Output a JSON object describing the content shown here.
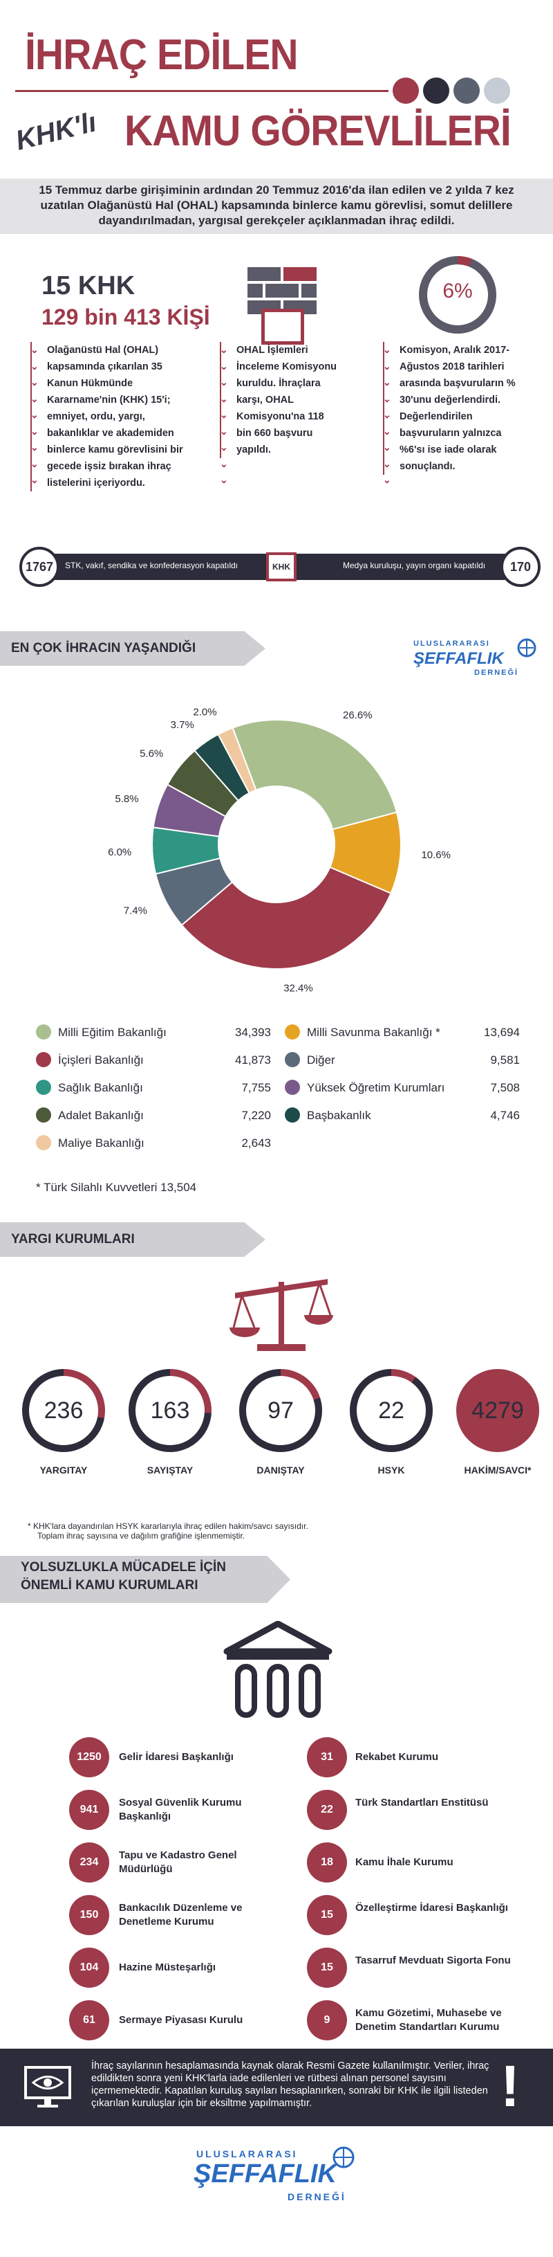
{
  "header": {
    "title_line1": "İHRAÇ EDİLEN",
    "khkli": "KHK'lı",
    "title_line2": "KAMU GÖREVLİLERİ",
    "dot_colors": [
      "#9e3a4a",
      "#2c2c3a",
      "#5a6270",
      "#c5ccd6"
    ]
  },
  "intro": "15 Temmuz darbe girişiminin ardından 20 Temmuz 2016'da ilan edilen ve 2 yılda 7 kez uzatılan Olağanüstü Hal (OHAL) kapsamında binlerce kamu görevlisi, somut delillere dayandırılmadan, yargısal gerekçeler açıklanmadan ihraç edildi.",
  "stats": {
    "khk_count": "15 KHK",
    "people": "129 bin 413 KİŞİ",
    "col1": "Olağanüstü Hal (OHAL) kapsamında çıkarılan 35 Kanun Hükmünde Kararname'nin (KHK) 15'i; emniyet, ordu, yargı, bakanlıklar ve akademiden binlerce kamu görevlisini bir gecede işsiz bırakan ihraç listelerini içeriyordu.",
    "col2": "OHAL İşlemleri İnceleme Komisyonu kuruldu. İhraçlara karşı, OHAL Komisyonu'na 118 bin 660 başvuru yapıldı.",
    "percent": "6%",
    "col3": "Komisyon, Aralık 2017-Ağustos 2018 tarihleri arasında başvuruların % 30'unu değerlendirdi. Değerlendirilen başvuruların yalnızca %6'sı ise iade olarak sonuçlandı."
  },
  "timeline": {
    "left_num": "1767",
    "left_text": "STK, vakıf, sendika ve konfederasyon kapatıldı",
    "center": "KHK",
    "right_text": "Medya kuruluşu, yayın organı kapatıldı",
    "right_num": "170"
  },
  "section1": {
    "title": "EN ÇOK İHRACIN YAŞANDIĞI KURUMLAR",
    "logo_line1": "ULUSLARARASI",
    "logo_line2": "ŞEFFAFLIK",
    "logo_line3": "DERNEĞİ"
  },
  "chart_data": {
    "type": "pie",
    "slices": [
      {
        "label": "Milli Eğitim Bakanlığı",
        "value": 34393,
        "percent": "26.6%",
        "color": "#a9bf8e"
      },
      {
        "label": "Milli Savunma Bakanlığı",
        "value": 13694,
        "percent": "10.6%",
        "color": "#e6a323"
      },
      {
        "label": "İçişleri Bakanlığı",
        "value": 41873,
        "percent": "32.4%",
        "color": "#9e3a4a"
      },
      {
        "label": "Diğer",
        "value": 9581,
        "percent": "7.4%",
        "color": "#5a6a7a"
      },
      {
        "label": "Sağlık Bakanlığı",
        "value": 7755,
        "percent": "6.0%",
        "color": "#2f9683"
      },
      {
        "label": "Yüksek Öğretim Kurumları",
        "value": 7508,
        "percent": "5.8%",
        "color": "#7a5a8a"
      },
      {
        "label": "Adalet Bakanlığı",
        "value": 7220,
        "percent": "5.6%",
        "color": "#4c5a3a"
      },
      {
        "label": "Başbakanlık",
        "value": 4746,
        "percent": "3.7%",
        "color": "#1f4a4a"
      },
      {
        "label": "Maliye Bakanlığı",
        "value": 2643,
        "percent": "2.0%",
        "color": "#f0c8a0"
      }
    ],
    "legend_left": [
      {
        "label": "Milli Eğitim Bakanlığı",
        "value": "34,393",
        "color": "#a9bf8e"
      },
      {
        "label": "İçişleri Bakanlığı",
        "value": "41,873",
        "color": "#9e3a4a"
      },
      {
        "label": "Sağlık Bakanlığı",
        "value": "7,755",
        "color": "#2f9683"
      },
      {
        "label": "Adalet Bakanlığı",
        "value": "7,220",
        "color": "#4c5a3a"
      },
      {
        "label": "Maliye Bakanlığı",
        "value": "2,643",
        "color": "#f0c8a0"
      }
    ],
    "legend_right": [
      {
        "label": "Milli Savunma Bakanlığı *",
        "value": "13,694",
        "color": "#e6a323"
      },
      {
        "label": "Diğer",
        "value": "9,581",
        "color": "#5a6a7a"
      },
      {
        "label": "Yüksek Öğretim Kurumları",
        "value": "7,508",
        "color": "#7a5a8a"
      },
      {
        "label": "Başbakanlık",
        "value": "4,746",
        "color": "#1f4a4a"
      }
    ],
    "footnote": "* Türk Silahlı Kuvvetleri 13,504"
  },
  "section2": {
    "title": "YARGI KURUMLARI",
    "rings": [
      {
        "value": "236",
        "label": "YARGITAY",
        "fraction": 0.28,
        "fill": "#9e3a4a",
        "inner": "#fff",
        "text": "#2c2c3a"
      },
      {
        "value": "163",
        "label": "SAYIŞTAY",
        "fraction": 0.26,
        "fill": "#9e3a4a",
        "inner": "#fff",
        "text": "#2c2c3a"
      },
      {
        "value": "97",
        "label": "DANIŞTAY",
        "fraction": 0.2,
        "fill": "#9e3a4a",
        "inner": "#fff",
        "text": "#2c2c3a"
      },
      {
        "value": "22",
        "label": "HSYK",
        "fraction": 0.1,
        "fill": "#9e3a4a",
        "inner": "#fff",
        "text": "#2c2c3a"
      },
      {
        "value": "4279",
        "label": "HAKİM/SAVCI*",
        "fraction": 1.0,
        "fill": "#9e3a4a",
        "inner": "#9e3a4a",
        "text": "#2c2c3a"
      }
    ],
    "footnote1": "* KHK'lara dayandırılan HSYK kararlarıyla ihraç edilen hakim/savcı sayısıdır.",
    "footnote2": "Toplam ihraç sayısına ve dağılım grafiğine işlenmemiştir."
  },
  "section3": {
    "title_line1": "YOLSUZLUKLA MÜCADELE İÇİN",
    "title_line2": "ÖNEMLİ KAMU KURUMLARI",
    "left": [
      {
        "num": "1250",
        "name": "Gelir İdaresi Başkanlığı"
      },
      {
        "num": "941",
        "name": "Sosyal Güvenlik Kurumu Başkanlığı"
      },
      {
        "num": "234",
        "name": "Tapu ve Kadastro Genel Müdürlüğü"
      },
      {
        "num": "150",
        "name": "Bankacılık Düzenleme ve Denetleme Kurumu"
      },
      {
        "num": "104",
        "name": "Hazine Müsteşarlığı"
      },
      {
        "num": "61",
        "name": "Sermaye Piyasası Kurulu"
      }
    ],
    "right": [
      {
        "num": "31",
        "name": "Rekabet Kurumu"
      },
      {
        "num": "22",
        "name": "Türk Standartları Enstitüsü"
      },
      {
        "num": "18",
        "name": "Kamu İhale Kurumu"
      },
      {
        "num": "15",
        "name": "Özelleştirme İdaresi Başkanlığı"
      },
      {
        "num": "15",
        "name": "Tasarruf Mevduatı Sigorta Fonu"
      },
      {
        "num": "9",
        "name": "Kamu Gözetimi, Muhasebe ve Denetim Standartları Kurumu"
      }
    ]
  },
  "footer": {
    "text": "İhraç sayılarının hesaplamasında kaynak olarak Resmi Gazete kullanılmıştır. Veriler, ihraç edildikten sonra yeni KHK'larla iade edilenleri ve rütbesi alınan personel sayısını içermemektedir. Kapatılan kuruluş sayıları hesaplanırken, sonraki bir KHK ile ilgili listeden çıkarılan kuruluşlar için bir eksiltme yapılmamıştır.",
    "exclaim": "!",
    "logo_line1": "ULUSLARARASI",
    "logo_line2": "ŞEFFAFLIK",
    "logo_line3": "DERNEĞİ"
  }
}
